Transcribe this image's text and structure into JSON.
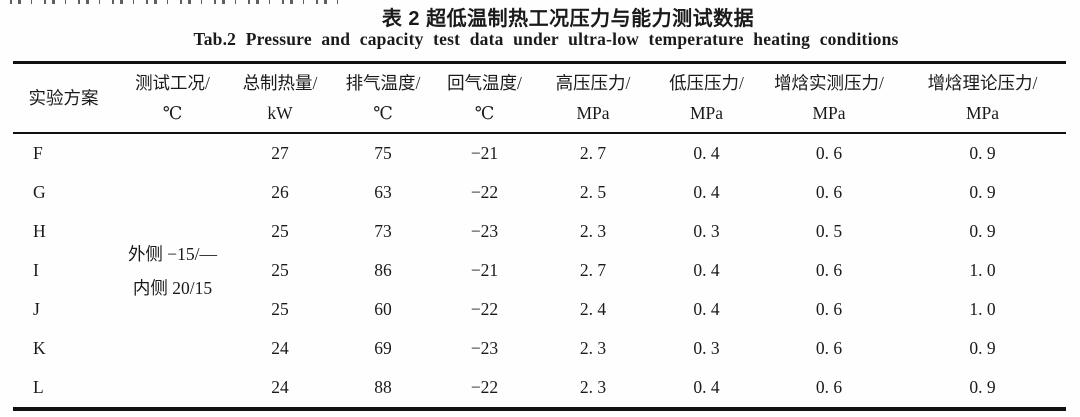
{
  "page": {
    "title_cn": "表 2 超低温制热工况压力与能力测试数据",
    "title_en": "Tab.2 Pressure and capacity test data under ultra-low temperature heating conditions"
  },
  "table": {
    "columns": [
      {
        "line1": "实验方案",
        "line2": ""
      },
      {
        "line1": "测试工况/",
        "line2": "℃"
      },
      {
        "line1": "总制热量/",
        "line2": "kW"
      },
      {
        "line1": "排气温度/",
        "line2": "℃"
      },
      {
        "line1": "回气温度/",
        "line2": "℃"
      },
      {
        "line1": "高压压力/",
        "line2": "MPa"
      },
      {
        "line1": "低压压力/",
        "line2": "MPa"
      },
      {
        "line1": "增焓实测压力/",
        "line2": "MPa"
      },
      {
        "line1": "增焓理论压力/",
        "line2": "MPa"
      }
    ],
    "condition": {
      "line1": "外侧 −15/—",
      "line2": "内侧 20/15"
    },
    "rows": [
      {
        "scheme": "F",
        "heat": "27",
        "discharge": "75",
        "return": "−21",
        "high": "2. 7",
        "low": "0. 4",
        "evi_actual": "0. 6",
        "evi_theory": "0. 9"
      },
      {
        "scheme": "G",
        "heat": "26",
        "discharge": "63",
        "return": "−22",
        "high": "2. 5",
        "low": "0. 4",
        "evi_actual": "0. 6",
        "evi_theory": "0. 9"
      },
      {
        "scheme": "H",
        "heat": "25",
        "discharge": "73",
        "return": "−23",
        "high": "2. 3",
        "low": "0. 3",
        "evi_actual": "0. 5",
        "evi_theory": "0. 9"
      },
      {
        "scheme": "I",
        "heat": "25",
        "discharge": "86",
        "return": "−21",
        "high": "2. 7",
        "low": "0. 4",
        "evi_actual": "0. 6",
        "evi_theory": "1. 0"
      },
      {
        "scheme": "J",
        "heat": "25",
        "discharge": "60",
        "return": "−22",
        "high": "2. 4",
        "low": "0. 4",
        "evi_actual": "0. 6",
        "evi_theory": "1. 0"
      },
      {
        "scheme": "K",
        "heat": "24",
        "discharge": "69",
        "return": "−23",
        "high": "2. 3",
        "low": "0. 3",
        "evi_actual": "0. 6",
        "evi_theory": "0. 9"
      },
      {
        "scheme": "L",
        "heat": "24",
        "discharge": "88",
        "return": "−22",
        "high": "2. 3",
        "low": "0. 4",
        "evi_actual": "0. 6",
        "evi_theory": "0. 9"
      }
    ]
  }
}
